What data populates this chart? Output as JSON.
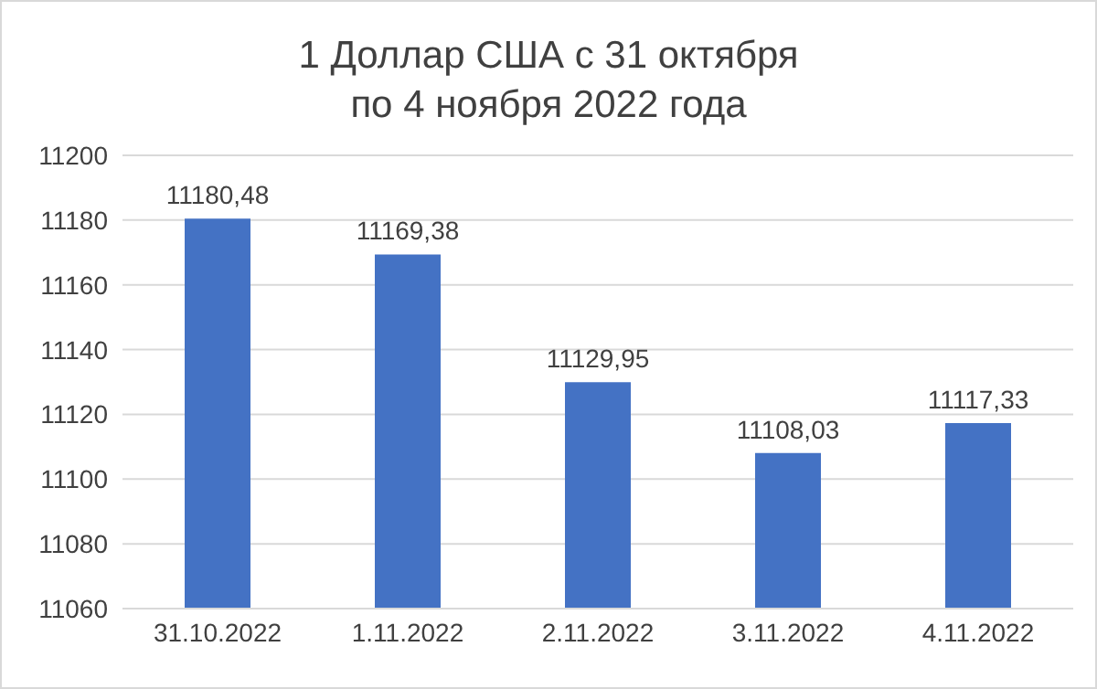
{
  "chart_data": {
    "type": "bar",
    "title": "1 Доллар США с 31 октября\nпо 4 ноября 2022 года",
    "categories": [
      "31.10.2022",
      "1.11.2022",
      "2.11.2022",
      "3.11.2022",
      "4.11.2022"
    ],
    "values": [
      11180.48,
      11169.38,
      11129.95,
      11108.03,
      11117.33
    ],
    "value_labels": [
      "11180,48",
      "11169,38",
      "11129,95",
      "11108,03",
      "11117,33"
    ],
    "color": "#4472c4",
    "ylim": [
      11060,
      11200
    ],
    "yticks": [
      11060,
      11080,
      11100,
      11120,
      11140,
      11160,
      11180,
      11200
    ],
    "grid": "y"
  }
}
